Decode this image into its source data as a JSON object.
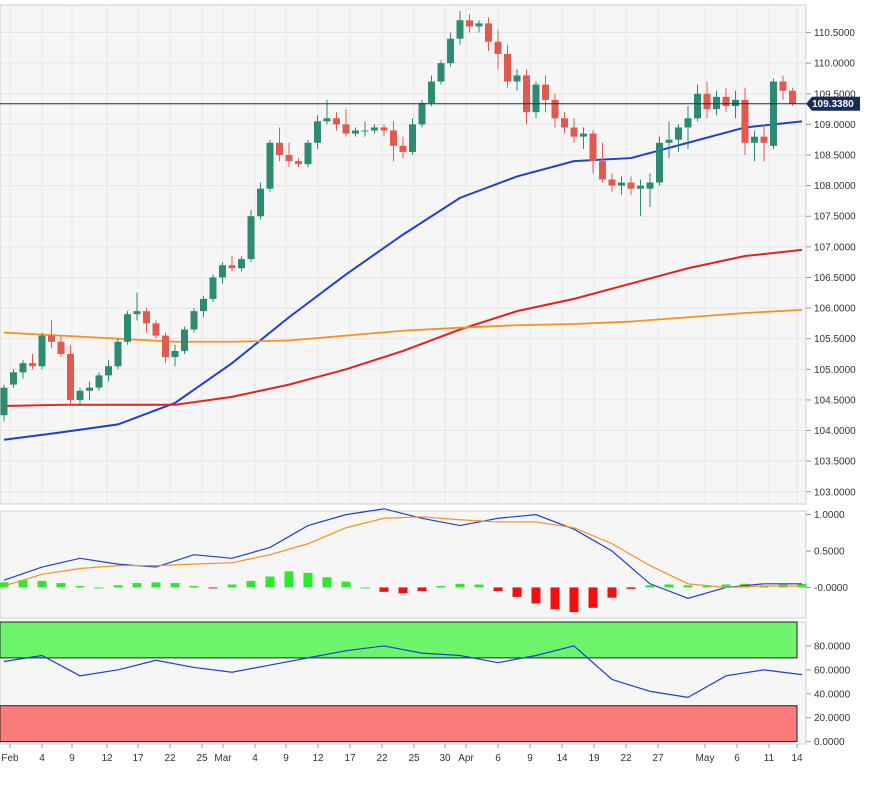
{
  "chart_data": [
    {
      "panel": "price",
      "type": "candlestick",
      "y_ticks": [
        "110.5000",
        "110.0000",
        "109.5000",
        "109.0000",
        "108.5000",
        "108.0000",
        "107.5000",
        "107.0000",
        "106.5000",
        "106.0000",
        "105.5000",
        "105.0000",
        "104.5000",
        "104.0000",
        "103.5000",
        "103.0000"
      ],
      "y_tick_values": [
        110.5,
        110.0,
        109.5,
        109.0,
        108.5,
        108.0,
        107.5,
        107.0,
        106.5,
        106.0,
        105.5,
        105.0,
        104.5,
        104.0,
        103.5,
        103.0
      ],
      "ylim": [
        102.8,
        110.95
      ],
      "last_price": 109.338,
      "last_price_label": "109.3380",
      "candles": [
        [
          104.25,
          104.75,
          104.15,
          104.7
        ],
        [
          104.75,
          105.0,
          104.7,
          104.95
        ],
        [
          104.95,
          105.15,
          104.85,
          105.1
        ],
        [
          105.1,
          105.25,
          105.0,
          105.05
        ],
        [
          105.05,
          105.6,
          105.0,
          105.55
        ],
        [
          105.55,
          105.8,
          105.35,
          105.45
        ],
        [
          105.45,
          105.55,
          105.2,
          105.25
        ],
        [
          105.25,
          105.4,
          104.4,
          104.5
        ],
        [
          104.5,
          104.7,
          104.4,
          104.65
        ],
        [
          104.65,
          104.8,
          104.5,
          104.7
        ],
        [
          104.7,
          104.95,
          104.65,
          104.9
        ],
        [
          104.9,
          105.15,
          104.8,
          105.05
        ],
        [
          105.05,
          105.5,
          105.0,
          105.45
        ],
        [
          105.45,
          105.95,
          105.4,
          105.9
        ],
        [
          105.9,
          106.25,
          105.8,
          105.95
        ],
        [
          105.95,
          106.0,
          105.6,
          105.75
        ],
        [
          105.75,
          105.8,
          105.5,
          105.55
        ],
        [
          105.55,
          105.6,
          105.1,
          105.2
        ],
        [
          105.2,
          105.4,
          105.05,
          105.3
        ],
        [
          105.3,
          105.7,
          105.25,
          105.65
        ],
        [
          105.65,
          106.0,
          105.6,
          105.95
        ],
        [
          105.95,
          106.2,
          105.85,
          106.15
        ],
        [
          106.15,
          106.55,
          106.1,
          106.5
        ],
        [
          106.5,
          106.75,
          106.4,
          106.7
        ],
        [
          106.7,
          106.85,
          106.6,
          106.65
        ],
        [
          106.65,
          106.85,
          106.6,
          106.8
        ],
        [
          106.8,
          107.6,
          106.75,
          107.5
        ],
        [
          107.5,
          108.05,
          107.45,
          107.95
        ],
        [
          107.95,
          108.75,
          107.9,
          108.7
        ],
        [
          108.7,
          108.95,
          108.4,
          108.5
        ],
        [
          108.5,
          108.7,
          108.3,
          108.4
        ],
        [
          108.4,
          108.45,
          108.3,
          108.35
        ],
        [
          108.35,
          108.75,
          108.3,
          108.7
        ],
        [
          108.7,
          109.15,
          108.6,
          109.05
        ],
        [
          109.05,
          109.4,
          109.0,
          109.1
        ],
        [
          109.1,
          109.2,
          108.9,
          109.0
        ],
        [
          109.0,
          109.25,
          108.8,
          108.85
        ],
        [
          108.85,
          108.95,
          108.8,
          108.9
        ],
        [
          108.9,
          109.05,
          108.8,
          108.9
        ],
        [
          108.9,
          109.0,
          108.85,
          108.95
        ],
        [
          108.95,
          109.0,
          108.8,
          108.9
        ],
        [
          108.9,
          109.05,
          108.4,
          108.65
        ],
        [
          108.65,
          108.8,
          108.45,
          108.55
        ],
        [
          108.55,
          109.1,
          108.5,
          109.0
        ],
        [
          109.0,
          109.4,
          108.95,
          109.35
        ],
        [
          109.35,
          109.8,
          109.3,
          109.7
        ],
        [
          109.7,
          110.05,
          109.65,
          110.0
        ],
        [
          110.0,
          110.5,
          109.95,
          110.4
        ],
        [
          110.4,
          110.85,
          110.3,
          110.7
        ],
        [
          110.7,
          110.8,
          110.5,
          110.6
        ],
        [
          110.6,
          110.7,
          110.5,
          110.65
        ],
        [
          110.65,
          110.75,
          110.2,
          110.35
        ],
        [
          110.35,
          110.55,
          109.9,
          110.15
        ],
        [
          110.15,
          110.3,
          109.6,
          109.7
        ],
        [
          109.7,
          109.9,
          109.55,
          109.8
        ],
        [
          109.8,
          109.9,
          109.0,
          109.2
        ],
        [
          109.2,
          109.7,
          109.1,
          109.65
        ],
        [
          109.65,
          109.8,
          109.2,
          109.4
        ],
        [
          109.4,
          109.5,
          108.95,
          109.1
        ],
        [
          109.1,
          109.2,
          108.85,
          108.95
        ],
        [
          108.95,
          109.1,
          108.7,
          108.8
        ],
        [
          108.8,
          108.95,
          108.6,
          108.85
        ],
        [
          108.85,
          108.9,
          108.2,
          108.4
        ],
        [
          108.4,
          108.7,
          108.05,
          108.1
        ],
        [
          108.1,
          108.2,
          107.9,
          108.0
        ],
        [
          108.0,
          108.15,
          107.85,
          108.05
        ],
        [
          108.05,
          108.15,
          107.85,
          107.95
        ],
        [
          107.95,
          108.1,
          107.5,
          108.0
        ],
        [
          107.95,
          108.2,
          107.65,
          108.05
        ],
        [
          108.05,
          108.8,
          108.0,
          108.7
        ],
        [
          108.7,
          109.05,
          108.45,
          108.75
        ],
        [
          108.75,
          109.0,
          108.55,
          108.95
        ],
        [
          108.95,
          109.3,
          108.6,
          109.1
        ],
        [
          109.1,
          109.65,
          109.05,
          109.5
        ],
        [
          109.5,
          109.7,
          109.1,
          109.25
        ],
        [
          109.25,
          109.55,
          109.15,
          109.45
        ],
        [
          109.45,
          109.6,
          109.2,
          109.3
        ],
        [
          109.3,
          109.55,
          109.1,
          109.4
        ],
        [
          109.4,
          109.6,
          108.5,
          108.7
        ],
        [
          108.7,
          108.9,
          108.4,
          108.8
        ],
        [
          108.8,
          109.0,
          108.4,
          108.7
        ],
        [
          108.65,
          109.75,
          108.6,
          109.7
        ],
        [
          109.7,
          109.8,
          109.4,
          109.55
        ],
        [
          109.55,
          109.6,
          109.3,
          109.338
        ]
      ],
      "series": [
        {
          "name": "",
          "color": "#1f3fd6",
          "x": [
            0,
            6,
            12,
            18,
            24,
            30,
            36,
            42,
            48,
            54,
            60,
            66,
            72,
            78,
            84
          ],
          "y": [
            103.85,
            103.97,
            104.1,
            104.45,
            105.1,
            105.85,
            106.55,
            107.2,
            107.8,
            108.15,
            108.4,
            108.45,
            108.7,
            108.95,
            109.05
          ]
        },
        {
          "name": "",
          "color": "#e82020",
          "x": [
            0,
            6,
            12,
            18,
            24,
            30,
            36,
            42,
            48,
            54,
            60,
            66,
            72,
            78,
            84
          ],
          "y": [
            104.4,
            104.42,
            104.42,
            104.42,
            104.55,
            104.75,
            105.0,
            105.3,
            105.65,
            105.95,
            106.15,
            106.4,
            106.65,
            106.85,
            106.95
          ]
        },
        {
          "name": "",
          "color": "#f7921e",
          "x": [
            0,
            6,
            12,
            18,
            24,
            30,
            36,
            42,
            48,
            54,
            60,
            66,
            72,
            78,
            84
          ],
          "y": [
            105.6,
            105.55,
            105.5,
            105.45,
            105.45,
            105.47,
            105.55,
            105.63,
            105.68,
            105.72,
            105.74,
            105.78,
            105.85,
            105.92,
            105.97
          ]
        }
      ]
    },
    {
      "panel": "macd",
      "type": "line+histogram",
      "y_ticks": [
        "1.0000",
        "0.5000",
        "-0.0000"
      ],
      "y_tick_values": [
        1.0,
        0.5,
        0.0
      ],
      "ylim": [
        -0.42,
        1.05
      ],
      "histogram_x": [
        0,
        2,
        4,
        6,
        8,
        10,
        12,
        14,
        16,
        18,
        20,
        22,
        24,
        26,
        28,
        30,
        32,
        34,
        36,
        38,
        40,
        42,
        44,
        46,
        48,
        50,
        52,
        54,
        56,
        58,
        60,
        62,
        64,
        66,
        68,
        70,
        72,
        74,
        76,
        78,
        80,
        82,
        84
      ],
      "histogram": [
        0.07,
        0.1,
        0.09,
        0.06,
        0.02,
        0.0,
        0.03,
        0.06,
        0.07,
        0.06,
        0.02,
        -0.01,
        0.04,
        0.09,
        0.15,
        0.22,
        0.2,
        0.14,
        0.08,
        0.0,
        -0.06,
        -0.08,
        -0.05,
        0.02,
        0.05,
        0.04,
        -0.05,
        -0.13,
        -0.22,
        -0.3,
        -0.34,
        -0.28,
        -0.14,
        -0.02,
        0.03,
        0.04,
        0.03,
        0.02,
        0.04,
        0.05,
        0.02,
        0.04,
        0.05
      ],
      "series": [
        {
          "name": "",
          "color": "#1f3fd6",
          "x": [
            0,
            4,
            8,
            12,
            16,
            20,
            24,
            28,
            32,
            36,
            40,
            44,
            48,
            52,
            56,
            60,
            64,
            68,
            72,
            76,
            80,
            84
          ],
          "y": [
            0.1,
            0.28,
            0.4,
            0.32,
            0.28,
            0.45,
            0.4,
            0.55,
            0.85,
            1.0,
            1.08,
            0.95,
            0.85,
            0.95,
            1.0,
            0.8,
            0.5,
            0.05,
            -0.15,
            0.0,
            0.05,
            0.05
          ]
        },
        {
          "name": "",
          "color": "#f7921e",
          "x": [
            0,
            4,
            8,
            12,
            16,
            20,
            24,
            28,
            32,
            36,
            40,
            44,
            48,
            52,
            56,
            60,
            64,
            68,
            72,
            76,
            80,
            84
          ],
          "y": [
            0.02,
            0.18,
            0.26,
            0.3,
            0.3,
            0.32,
            0.34,
            0.45,
            0.6,
            0.82,
            0.95,
            0.97,
            0.93,
            0.9,
            0.9,
            0.82,
            0.6,
            0.3,
            0.05,
            0.0,
            0.02,
            0.02
          ]
        }
      ]
    },
    {
      "panel": "rsi",
      "type": "line",
      "y_ticks": [
        "80.0000",
        "60.0000",
        "40.0000",
        "20.0000",
        "0.0000"
      ],
      "y_tick_values": [
        80,
        60,
        40,
        20,
        0
      ],
      "ylim": [
        -2,
        100
      ],
      "overbought_band": [
        70,
        100
      ],
      "oversold_band": [
        0,
        30
      ],
      "series": [
        {
          "name": "",
          "color": "#1f3fd6",
          "x": [
            0,
            4,
            8,
            12,
            16,
            20,
            24,
            28,
            32,
            36,
            40,
            44,
            48,
            52,
            56,
            60,
            64,
            68,
            72,
            76,
            80,
            84
          ],
          "y": [
            67,
            72,
            55,
            60,
            68,
            62,
            58,
            64,
            70,
            76,
            80,
            74,
            72,
            66,
            72,
            80,
            52,
            42,
            37,
            55,
            60,
            56
          ]
        }
      ]
    }
  ],
  "x_axis": {
    "labels": [
      "Feb",
      "4",
      "9",
      "12",
      "17",
      "22",
      "25",
      "Mar",
      "4",
      "9",
      "12",
      "17",
      "22",
      "25",
      "30",
      "Apr",
      "6",
      "9",
      "14",
      "19",
      "22",
      "27",
      "May",
      "6",
      "11",
      "14"
    ],
    "label_x": [
      10,
      42,
      72,
      107,
      138,
      170,
      202,
      223,
      255,
      286,
      318,
      350,
      382,
      414,
      445,
      466,
      498,
      530,
      562,
      594,
      626,
      658,
      705,
      737,
      769,
      797
    ]
  }
}
